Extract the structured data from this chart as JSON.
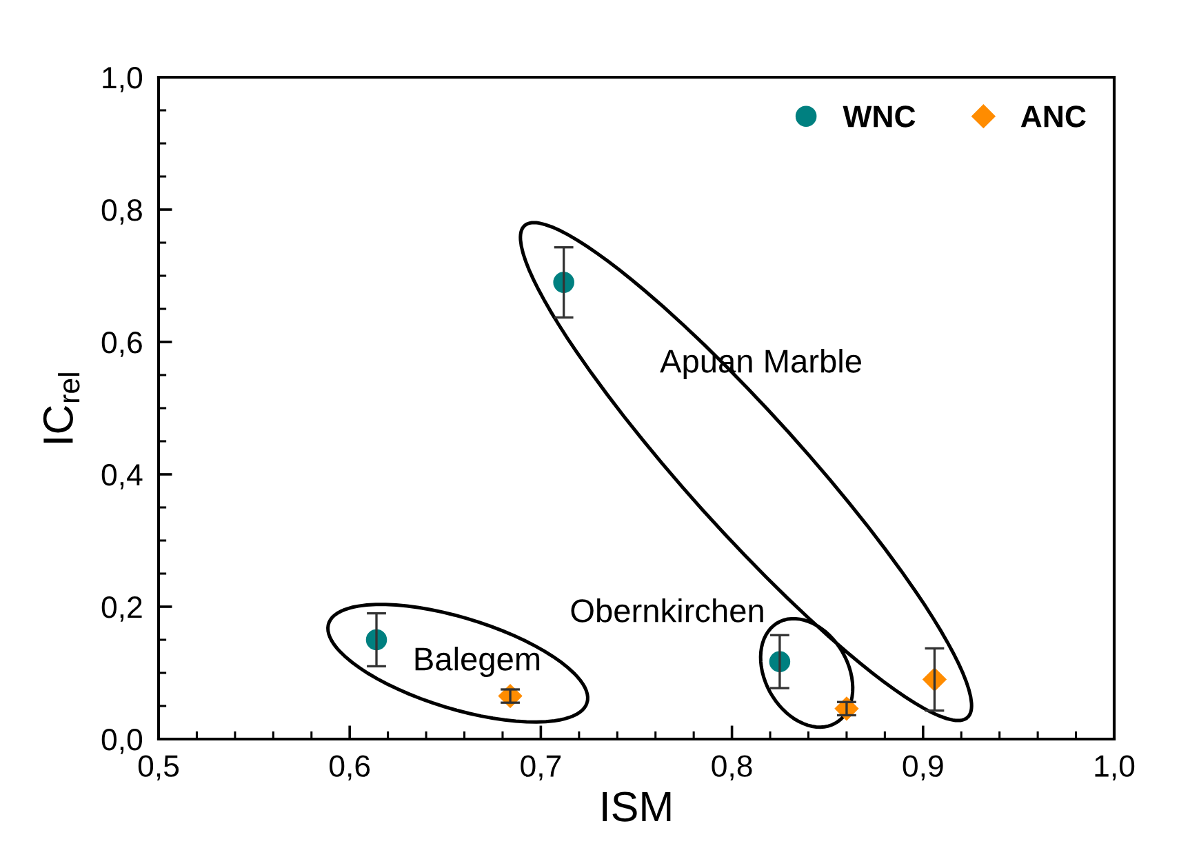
{
  "chart_data": {
    "type": "scatter",
    "xlabel": "ISM",
    "ylabel": "IC$_{rel}$",
    "xlim": [
      0.5,
      1.0
    ],
    "ylim": [
      0.0,
      1.0
    ],
    "xticks": [
      {
        "value": 0.5,
        "label": "0,5"
      },
      {
        "value": 0.6,
        "label": "0,6"
      },
      {
        "value": 0.7,
        "label": "0,7"
      },
      {
        "value": 0.8,
        "label": "0,8"
      },
      {
        "value": 0.9,
        "label": "0,9"
      },
      {
        "value": 1.0,
        "label": "1,0"
      }
    ],
    "yticks": [
      {
        "value": 0.0,
        "label": "0,0"
      },
      {
        "value": 0.2,
        "label": "0,2"
      },
      {
        "value": 0.4,
        "label": "0,4"
      },
      {
        "value": 0.6,
        "label": "0,6"
      },
      {
        "value": 0.8,
        "label": "0,8"
      },
      {
        "value": 1.0,
        "label": "1,0"
      }
    ],
    "legend": "top right",
    "grid": false,
    "series": [
      {
        "name": "WNC",
        "color": "#008080",
        "marker": "circle",
        "x": [
          0.614,
          0.712,
          0.825
        ],
        "values": [
          0.15,
          0.69,
          0.117
        ],
        "errors": [
          0.04,
          0.053,
          0.04
        ]
      },
      {
        "name": "ANC",
        "color": "#ff8c00",
        "marker": "diamond",
        "x": [
          0.684,
          0.86,
          0.906
        ],
        "values": [
          0.065,
          0.046,
          0.09
        ],
        "errors": [
          0.01,
          0.01,
          0.047
        ]
      }
    ],
    "annotations": [
      "Apuan Marble",
      "Obernkirchen",
      "Balegem"
    ]
  }
}
